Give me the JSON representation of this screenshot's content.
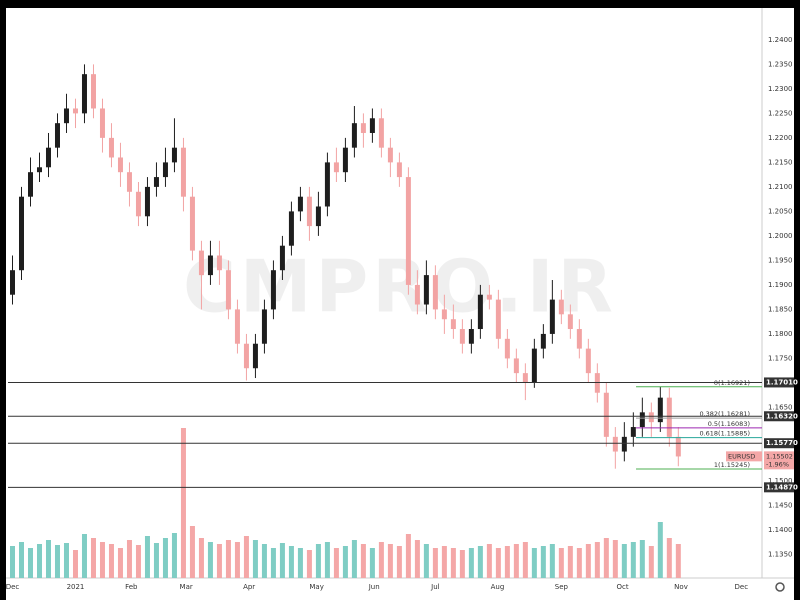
{
  "chart_data": {
    "type": "candlestick",
    "watermark": "CMPRO.IR",
    "symbol": "EURUSD",
    "last_price": 1.15502,
    "change": {
      "value": -1.96,
      "label": "-1.96%"
    },
    "up_color": "#1e1e1e",
    "down_color": "#f2a3a3",
    "volume_up_color": "#7fcdc4",
    "volume_down_color": "#f4a7a7",
    "xlim": [
      -0.5,
      83.3
    ],
    "xticks": [
      {
        "value": 0,
        "label": "Dec"
      },
      {
        "value": 7,
        "label": "2021"
      },
      {
        "value": 13.2,
        "label": "Feb"
      },
      {
        "value": 19.3,
        "label": "Mar"
      },
      {
        "value": 26.3,
        "label": "Apr"
      },
      {
        "value": 33.8,
        "label": "May"
      },
      {
        "value": 40.2,
        "label": "Jun"
      },
      {
        "value": 47,
        "label": "Jul"
      },
      {
        "value": 53.9,
        "label": "Aug"
      },
      {
        "value": 61,
        "label": "Sep"
      },
      {
        "value": 67.8,
        "label": "Oct"
      },
      {
        "value": 74.3,
        "label": "Nov"
      },
      {
        "value": 81,
        "label": "Dec"
      }
    ],
    "ylim": [
      1.1302,
      1.2465
    ],
    "yticks": [
      {
        "value": 1.24,
        "label": "1.2400"
      },
      {
        "value": 1.235,
        "label": "1.2350"
      },
      {
        "value": 1.23,
        "label": "1.2300"
      },
      {
        "value": 1.225,
        "label": "1.2250"
      },
      {
        "value": 1.22,
        "label": "1.2200"
      },
      {
        "value": 1.215,
        "label": "1.2150"
      },
      {
        "value": 1.21,
        "label": "1.2100"
      },
      {
        "value": 1.205,
        "label": "1.2050"
      },
      {
        "value": 1.2,
        "label": "1.2000"
      },
      {
        "value": 1.195,
        "label": "1.1950"
      },
      {
        "value": 1.19,
        "label": "1.1900"
      },
      {
        "value": 1.185,
        "label": "1.1850"
      },
      {
        "value": 1.18,
        "label": "1.1800"
      },
      {
        "value": 1.175,
        "label": "1.1750"
      },
      {
        "value": 1.165,
        "label": "1.1650"
      },
      {
        "value": 1.15,
        "label": "1.1500"
      },
      {
        "value": 1.145,
        "label": "1.1450"
      },
      {
        "value": 1.14,
        "label": "1.1400"
      },
      {
        "value": 1.135,
        "label": "1.1350"
      }
    ],
    "grid": false,
    "levels": [
      {
        "value": 1.1701,
        "label": "1.17010"
      },
      {
        "value": 1.1632,
        "label": "1.16320"
      },
      {
        "value": 1.1577,
        "label": "1.15770"
      },
      {
        "value": 1.1487,
        "label": "1.14870"
      }
    ],
    "fib_xlim": [
      69.3,
      83.3
    ],
    "fib_levels": [
      {
        "value": 1.16921,
        "label": "0(1.16921)",
        "color": "#4caf50"
      },
      {
        "value": 1.16281,
        "label": "0.382(1.16281)",
        "color": "#9e9e9e"
      },
      {
        "value": 1.16083,
        "label": "0.5(1.16083)",
        "color": "#9c27b0"
      },
      {
        "value": 1.15885,
        "label": "0.618(1.15885)",
        "color": "#26a69a"
      },
      {
        "value": 1.15245,
        "label": "1(1.15245)",
        "color": "#4caf50"
      }
    ],
    "open": [
      1.188,
      1.193,
      1.208,
      1.213,
      1.214,
      1.218,
      1.223,
      1.226,
      1.225,
      1.233,
      1.226,
      1.22,
      1.216,
      1.213,
      1.209,
      1.204,
      1.21,
      1.212,
      1.215,
      1.218,
      1.208,
      1.197,
      1.192,
      1.196,
      1.193,
      1.185,
      1.178,
      1.173,
      1.178,
      1.185,
      1.193,
      1.198,
      1.205,
      1.208,
      1.202,
      1.206,
      1.215,
      1.213,
      1.218,
      1.223,
      1.221,
      1.224,
      1.218,
      1.215,
      1.212,
      1.19,
      1.186,
      1.192,
      1.185,
      1.183,
      1.181,
      1.178,
      1.181,
      1.188,
      1.187,
      1.179,
      1.175,
      1.172,
      1.17,
      1.177,
      1.18,
      1.187,
      1.184,
      1.181,
      1.177,
      1.172,
      1.168,
      1.159,
      1.156,
      1.159,
      1.161,
      1.164,
      1.162,
      1.167,
      1.159
    ],
    "high": [
      1.196,
      1.21,
      1.216,
      1.217,
      1.221,
      1.225,
      1.229,
      1.228,
      1.235,
      1.235,
      1.228,
      1.223,
      1.219,
      1.215,
      1.211,
      1.212,
      1.215,
      1.218,
      1.224,
      1.22,
      1.21,
      1.199,
      1.199,
      1.199,
      1.195,
      1.187,
      1.18,
      1.18,
      1.187,
      1.195,
      1.2,
      1.207,
      1.21,
      1.21,
      1.209,
      1.217,
      1.218,
      1.22,
      1.2265,
      1.225,
      1.226,
      1.226,
      1.22,
      1.217,
      1.214,
      1.193,
      1.195,
      1.194,
      1.188,
      1.186,
      1.183,
      1.183,
      1.19,
      1.19,
      1.189,
      1.181,
      1.177,
      1.174,
      1.179,
      1.182,
      1.191,
      1.189,
      1.186,
      1.183,
      1.179,
      1.174,
      1.17,
      1.161,
      1.162,
      1.164,
      1.167,
      1.166,
      1.1692,
      1.169,
      1.161
    ],
    "low": [
      1.186,
      1.191,
      1.206,
      1.211,
      1.212,
      1.216,
      1.221,
      1.222,
      1.223,
      1.224,
      1.217,
      1.214,
      1.21,
      1.206,
      1.202,
      1.202,
      1.208,
      1.21,
      1.213,
      1.205,
      1.195,
      1.185,
      1.19,
      1.19,
      1.183,
      1.176,
      1.1705,
      1.171,
      1.176,
      1.183,
      1.191,
      1.196,
      1.203,
      1.199,
      1.2,
      1.204,
      1.211,
      1.211,
      1.216,
      1.218,
      1.219,
      1.216,
      1.212,
      1.21,
      1.188,
      1.184,
      1.184,
      1.183,
      1.18,
      1.179,
      1.176,
      1.176,
      1.179,
      1.185,
      1.177,
      1.173,
      1.17,
      1.1665,
      1.169,
      1.175,
      1.178,
      1.182,
      1.179,
      1.175,
      1.17,
      1.166,
      1.157,
      1.1525,
      1.154,
      1.157,
      1.159,
      1.159,
      1.16,
      1.157,
      1.153
    ],
    "close": [
      1.193,
      1.208,
      1.213,
      1.214,
      1.218,
      1.223,
      1.226,
      1.225,
      1.233,
      1.226,
      1.22,
      1.216,
      1.213,
      1.209,
      1.204,
      1.21,
      1.212,
      1.215,
      1.218,
      1.208,
      1.197,
      1.192,
      1.196,
      1.193,
      1.185,
      1.178,
      1.173,
      1.178,
      1.185,
      1.193,
      1.198,
      1.205,
      1.208,
      1.202,
      1.206,
      1.215,
      1.213,
      1.218,
      1.223,
      1.221,
      1.224,
      1.218,
      1.215,
      1.212,
      1.19,
      1.186,
      1.192,
      1.185,
      1.183,
      1.181,
      1.178,
      1.181,
      1.188,
      1.187,
      1.179,
      1.175,
      1.172,
      1.17,
      1.177,
      1.18,
      1.187,
      1.184,
      1.181,
      1.177,
      1.172,
      1.168,
      1.159,
      1.156,
      1.159,
      1.161,
      1.164,
      1.162,
      1.167,
      1.159,
      1.155
    ],
    "volume_ylim": [
      0,
      170
    ],
    "volume": [
      32,
      36,
      30,
      34,
      38,
      33,
      35,
      28,
      44,
      40,
      36,
      34,
      30,
      38,
      33,
      42,
      35,
      40,
      45,
      150,
      52,
      40,
      36,
      34,
      38,
      36,
      42,
      38,
      34,
      30,
      35,
      32,
      30,
      28,
      34,
      36,
      30,
      32,
      38,
      34,
      30,
      36,
      34,
      32,
      44,
      38,
      34,
      30,
      32,
      30,
      28,
      30,
      32,
      34,
      30,
      32,
      34,
      36,
      30,
      32,
      34,
      30,
      32,
      30,
      34,
      36,
      40,
      38,
      34,
      36,
      38,
      32,
      56,
      40,
      34
    ]
  }
}
